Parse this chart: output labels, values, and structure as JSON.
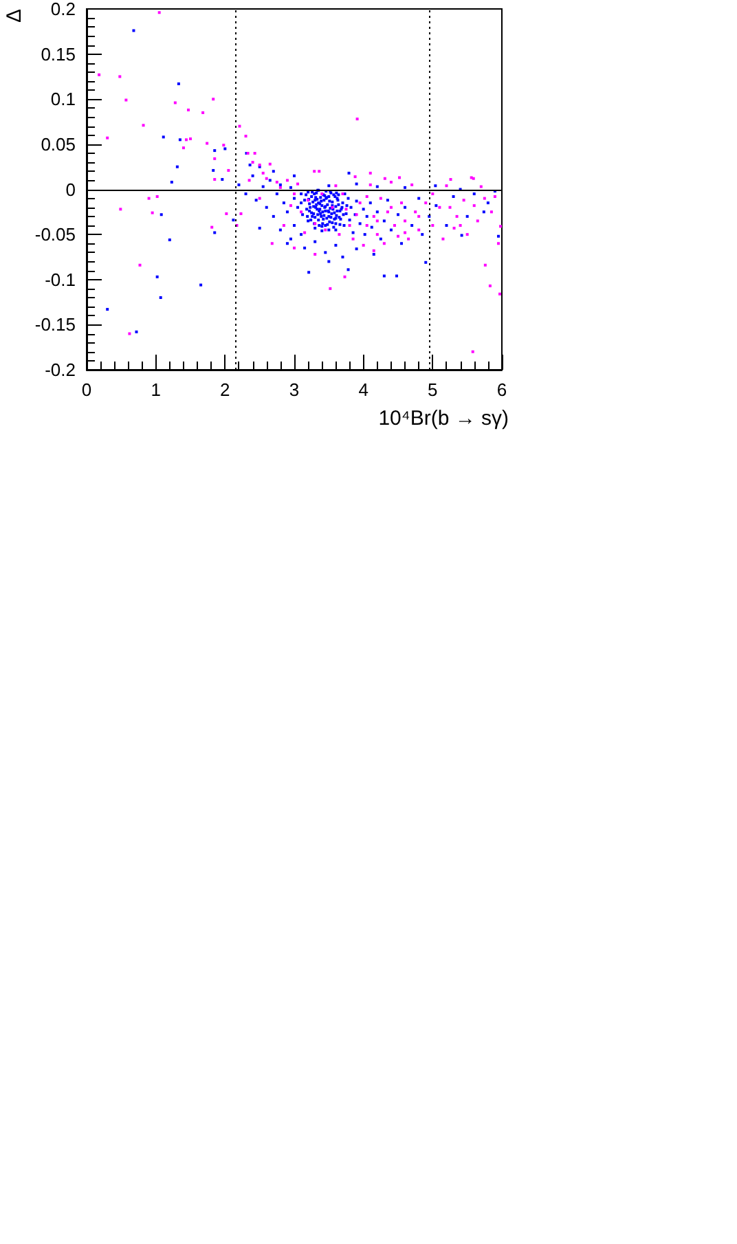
{
  "chart_data": {
    "type": "scatter",
    "xlabel": "10⁴Br(b → sγ)",
    "ylabel": "Δ",
    "xlim": [
      0,
      6
    ],
    "xticks": [
      0,
      1,
      2,
      3,
      4,
      5,
      6
    ],
    "ylim": [
      -0.2,
      0.2
    ],
    "yticks": [
      -0.2,
      -0.15,
      -0.1,
      -0.05,
      0,
      0.05,
      0.1,
      0.15,
      0.2
    ],
    "marker": "square",
    "ref_lines": [
      {
        "axis": "x",
        "value": 2.16,
        "line_style": "dotted",
        "color": "#000000"
      },
      {
        "axis": "x",
        "value": 4.95,
        "line_style": "dotted",
        "color": "#000000"
      },
      {
        "axis": "y",
        "value": 0,
        "line_style": "solid",
        "color": "#000000"
      }
    ],
    "series": [
      {
        "color": "#0000ff",
        "x": [
          0.68,
          1.11,
          1.33,
          1.35,
          1.85,
          2.0,
          1.31,
          1.23,
          1.83,
          1.96,
          2.31,
          2.36,
          1.08,
          1.2,
          1.02,
          1.65,
          1.07,
          0.3,
          0.72,
          1.85,
          2.12,
          2.5,
          3.21,
          3.78,
          4.3,
          4.48,
          4.9,
          5.95,
          5.74,
          5.42,
          5.04,
          3.79,
          3.0,
          3.05,
          3.1,
          3.1,
          3.12,
          3.15,
          3.18,
          3.2,
          3.2,
          3.22,
          3.25,
          3.25,
          3.28,
          3.3,
          3.3,
          3.32,
          3.33,
          3.35,
          3.36,
          3.38,
          3.38,
          3.4,
          3.42,
          3.43,
          3.45,
          3.46,
          3.48,
          3.5,
          3.5,
          3.52,
          3.55,
          3.55,
          3.58,
          3.6,
          3.6,
          3.62,
          3.65,
          3.68,
          3.7,
          3.72,
          3.75,
          3.78,
          3.8,
          3.82,
          3.85,
          3.88,
          3.9,
          3.95,
          4.0,
          4.02,
          4.05,
          4.1,
          4.12,
          4.2,
          4.25,
          4.3,
          4.35,
          4.4,
          4.5,
          4.55,
          4.6,
          4.7,
          4.8,
          4.85,
          4.95,
          5.05,
          5.2,
          5.3,
          5.5,
          5.6,
          5.8,
          5.9,
          2.2,
          2.3,
          2.4,
          2.45,
          2.55,
          2.6,
          2.65,
          2.7,
          2.75,
          2.8,
          2.8,
          2.85,
          2.9,
          2.95,
          2.95,
          2.9,
          3.0,
          3.1,
          3.15,
          3.3,
          3.45,
          3.6,
          3.7,
          3.5,
          3.9,
          4.15,
          2.7,
          2.5,
          3.0,
          3.5,
          3.9,
          4.2,
          4.6,
          5.4,
          3.22,
          3.27,
          3.31,
          3.34,
          3.37,
          3.41,
          3.44,
          3.47,
          3.51,
          3.54,
          3.57,
          3.61,
          3.64,
          3.67,
          3.29,
          3.33,
          3.39,
          3.44,
          3.49,
          3.53,
          3.58,
          3.63,
          3.26,
          3.36,
          3.46,
          3.56,
          3.66,
          3.41,
          3.51,
          3.61,
          3.17,
          3.19,
          3.21,
          3.23,
          3.24,
          3.26,
          3.28,
          3.29,
          3.31,
          3.32,
          3.34,
          3.35,
          3.37,
          3.39,
          3.4,
          3.42,
          3.43,
          3.45,
          3.47,
          3.48,
          3.5,
          3.52,
          3.53,
          3.55,
          3.57,
          3.59,
          3.6,
          3.62,
          3.64,
          3.66,
          3.69,
          3.71,
          3.73,
          3.76,
          3.3,
          3.4,
          3.5,
          3.6,
          3.35,
          3.45
        ],
        "values": [
          0.176,
          0.058,
          0.117,
          0.055,
          0.043,
          0.045,
          0.025,
          0.008,
          0.021,
          0.011,
          0.04,
          0.027,
          -0.028,
          -0.056,
          -0.097,
          -0.106,
          -0.12,
          -0.133,
          -0.158,
          -0.048,
          -0.034,
          -0.043,
          -0.092,
          -0.089,
          -0.096,
          -0.096,
          -0.081,
          -0.052,
          -0.025,
          -0.051,
          0.004,
          0.018,
          -0.01,
          -0.02,
          -0.005,
          -0.015,
          -0.028,
          -0.012,
          -0.022,
          -0.003,
          -0.035,
          -0.016,
          -0.008,
          -0.026,
          -0.019,
          -0.012,
          -0.031,
          -0.004,
          -0.022,
          -0.015,
          -0.04,
          -0.009,
          -0.027,
          -0.018,
          -0.033,
          -0.012,
          -0.024,
          -0.002,
          -0.017,
          -0.03,
          -0.008,
          -0.021,
          -0.014,
          -0.037,
          -0.026,
          -0.019,
          -0.045,
          -0.01,
          -0.031,
          -0.022,
          -0.015,
          -0.04,
          -0.027,
          -0.01,
          -0.034,
          -0.02,
          -0.048,
          -0.028,
          -0.013,
          -0.038,
          -0.022,
          -0.05,
          -0.03,
          -0.015,
          -0.042,
          -0.025,
          -0.055,
          -0.035,
          -0.012,
          -0.045,
          -0.028,
          -0.06,
          -0.02,
          -0.04,
          -0.01,
          -0.05,
          -0.03,
          -0.018,
          -0.04,
          -0.008,
          -0.03,
          -0.005,
          -0.015,
          -0.002,
          0.005,
          -0.005,
          0.015,
          -0.012,
          0.003,
          -0.02,
          0.01,
          -0.03,
          -0.005,
          0.005,
          -0.045,
          -0.015,
          -0.025,
          0.002,
          -0.055,
          -0.06,
          -0.04,
          -0.05,
          -0.065,
          -0.058,
          -0.07,
          -0.062,
          -0.075,
          -0.08,
          -0.066,
          -0.072,
          0.02,
          0.025,
          0.015,
          0.004,
          0.006,
          0.003,
          0.002,
          0.0,
          -0.024,
          -0.014,
          -0.02,
          -0.028,
          -0.016,
          -0.025,
          -0.007,
          -0.032,
          -0.013,
          -0.027,
          -0.006,
          -0.029,
          -0.017,
          -0.033,
          -0.005,
          -0.011,
          -0.03,
          -0.02,
          -0.024,
          -0.004,
          -0.033,
          -0.012,
          -0.03,
          -0.024,
          -0.01,
          -0.022,
          -0.024,
          -0.038,
          -0.036,
          -0.004,
          -0.006,
          -0.03,
          -0.011,
          -0.02,
          -0.034,
          -0.003,
          -0.027,
          -0.038,
          -0.009,
          -0.017,
          -0.001,
          -0.034,
          -0.022,
          -0.013,
          -0.041,
          -0.006,
          -0.029,
          -0.019,
          -0.009,
          -0.039,
          -0.025,
          -0.002,
          -0.031,
          -0.018,
          -0.042,
          -0.008,
          -0.032,
          -0.024,
          -0.006,
          -0.039,
          -0.02,
          -0.028,
          -0.005,
          -0.018,
          -0.043,
          -0.046,
          -0.045,
          -0.038,
          -0.001,
          -0.04
        ]
      },
      {
        "color": "#ff00ff",
        "x": [
          0.18,
          1.05,
          0.48,
          0.57,
          0.3,
          0.82,
          1.28,
          1.47,
          1.68,
          1.83,
          1.44,
          1.5,
          1.4,
          1.74,
          1.98,
          1.85,
          1.85,
          2.05,
          2.21,
          2.3,
          2.33,
          2.43,
          2.5,
          3.91,
          4.1,
          5.56,
          5.26,
          4.52,
          4.31,
          3.29,
          3.36,
          3.88,
          0.9,
          1.02,
          0.49,
          0.95,
          0.77,
          0.62,
          1.81,
          2.02,
          2.23,
          2.17,
          2.68,
          5.58,
          3.73,
          3.52,
          5.83,
          5.97,
          5.76,
          5.98,
          5.9,
          5.59,
          5.31,
          2.6,
          2.75,
          2.9,
          3.0,
          3.1,
          3.2,
          3.3,
          3.4,
          3.45,
          3.55,
          3.65,
          3.7,
          3.8,
          3.85,
          3.95,
          4.0,
          4.05,
          4.1,
          4.15,
          4.2,
          4.25,
          4.3,
          4.35,
          4.4,
          4.45,
          4.5,
          4.55,
          4.6,
          4.65,
          4.7,
          4.75,
          4.8,
          4.9,
          5.0,
          5.1,
          5.15,
          5.2,
          5.35,
          5.45,
          5.5,
          5.65,
          5.7,
          5.85,
          5.95,
          3.0,
          3.3,
          2.85,
          2.5,
          2.4,
          2.65,
          2.35,
          2.55,
          2.8,
          2.95,
          3.05,
          3.15,
          3.6,
          3.75,
          3.9,
          4.05,
          4.2,
          4.4,
          4.6,
          4.8,
          5.0,
          5.25,
          5.4,
          5.6,
          5.75,
          4.15
        ],
        "values": [
          0.127,
          0.196,
          0.125,
          0.099,
          0.057,
          0.071,
          0.096,
          0.088,
          0.085,
          0.1,
          0.055,
          0.056,
          0.046,
          0.051,
          0.049,
          0.034,
          0.011,
          0.021,
          0.07,
          0.059,
          0.04,
          0.04,
          0.027,
          0.078,
          0.018,
          0.013,
          0.011,
          0.013,
          0.012,
          0.02,
          0.02,
          0.014,
          -0.01,
          -0.008,
          -0.022,
          -0.026,
          -0.084,
          -0.16,
          -0.042,
          -0.027,
          -0.027,
          -0.04,
          -0.06,
          -0.18,
          -0.097,
          -0.11,
          -0.107,
          -0.116,
          -0.084,
          -0.041,
          -0.008,
          0.012,
          -0.043,
          0.012,
          0.008,
          0.01,
          -0.005,
          -0.025,
          -0.012,
          -0.038,
          -0.005,
          -0.045,
          -0.02,
          -0.05,
          -0.005,
          -0.04,
          -0.055,
          -0.015,
          -0.062,
          -0.04,
          0.005,
          -0.03,
          -0.05,
          -0.01,
          -0.06,
          -0.025,
          0.008,
          -0.04,
          -0.052,
          -0.015,
          -0.035,
          -0.055,
          0.005,
          -0.025,
          -0.045,
          -0.015,
          -0.04,
          -0.02,
          -0.055,
          0.004,
          -0.03,
          -0.012,
          -0.05,
          -0.035,
          0.003,
          -0.025,
          -0.06,
          -0.065,
          -0.072,
          -0.04,
          -0.01,
          0.03,
          0.028,
          0.01,
          0.018,
          0.002,
          -0.018,
          0.006,
          -0.048,
          0.004,
          -0.022,
          -0.028,
          -0.008,
          -0.035,
          -0.02,
          -0.048,
          -0.03,
          -0.005,
          -0.02,
          -0.04,
          -0.018,
          -0.01,
          -0.068
        ]
      }
    ]
  }
}
